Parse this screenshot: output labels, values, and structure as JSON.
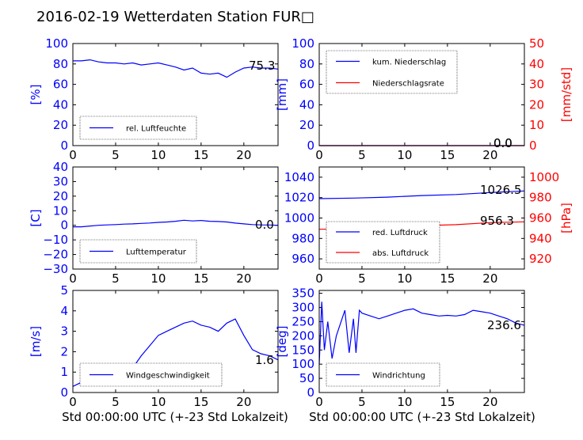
{
  "title": "2016-02-19 Wetterdaten Station FUR□",
  "xlabel": "Std 00:00:00 UTC (+-23 Std Lokalzeit)",
  "colors": {
    "primary": "#0000ff",
    "secondary": "#ff0000"
  },
  "chart_data": [
    {
      "id": "humidity",
      "type": "line",
      "ylabel": "[%]",
      "ylim": [
        0,
        100
      ],
      "yticks": [
        "0",
        "20",
        "40",
        "60",
        "80",
        "100"
      ],
      "xlim": [
        0,
        24
      ],
      "xticks": [
        "0",
        "5",
        "10",
        "15",
        "20"
      ],
      "legend": [
        "rel. Luftfeuchte"
      ],
      "legend_position": "lower-left",
      "last_values": [
        "75.3"
      ],
      "series": [
        {
          "name": "rel. Luftfeuchte",
          "color": "#0000ff",
          "x": [
            0,
            1,
            2,
            3,
            4,
            5,
            6,
            7,
            8,
            9,
            10,
            11,
            12,
            13,
            14,
            15,
            16,
            17,
            18,
            19,
            20,
            21,
            22,
            23,
            24
          ],
          "y": [
            83,
            83,
            84,
            82,
            81,
            81,
            80,
            81,
            79,
            80,
            81,
            79,
            77,
            74,
            76,
            71,
            70,
            71,
            67,
            72,
            76,
            77,
            76,
            76,
            75
          ]
        }
      ]
    },
    {
      "id": "precipitation",
      "type": "line",
      "ylabel": "[mm]",
      "ylabel_right": "[mm/std]",
      "ylim": [
        0,
        100
      ],
      "ylim_right": [
        0,
        50
      ],
      "yticks": [
        "0",
        "20",
        "40",
        "60",
        "80",
        "100"
      ],
      "yticks_right": [
        "0",
        "10",
        "20",
        "30",
        "40",
        "50"
      ],
      "xlim": [
        0,
        24
      ],
      "xticks": [
        "0",
        "5",
        "10",
        "15",
        "20"
      ],
      "legend": [
        "kum. Niederschlag",
        "Niederschlagsrate"
      ],
      "legend_position": "upper-left",
      "last_values": [
        "0.0",
        "0.0"
      ],
      "series": [
        {
          "name": "kum. Niederschlag",
          "color": "#0000ff",
          "x": [
            0,
            24
          ],
          "y": [
            0,
            0
          ]
        },
        {
          "name": "Niederschlagsrate",
          "color": "#ff0000",
          "x": [
            0,
            24
          ],
          "y": [
            0,
            0
          ]
        }
      ]
    },
    {
      "id": "temperature",
      "type": "line",
      "ylabel": "[C]",
      "ylim": [
        -30,
        40
      ],
      "yticks": [
        "−30",
        "−20",
        "−10",
        "0",
        "10",
        "20",
        "30",
        "40"
      ],
      "xlim": [
        0,
        24
      ],
      "xticks": [
        "0",
        "5",
        "10",
        "15",
        "20"
      ],
      "legend": [
        "Lufttemperatur"
      ],
      "legend_position": "lower-left",
      "last_values": [
        "0.0"
      ],
      "series": [
        {
          "name": "Lufttemperatur",
          "color": "#0000ff",
          "x": [
            0,
            1,
            2,
            3,
            4,
            5,
            6,
            7,
            8,
            9,
            10,
            11,
            12,
            13,
            14,
            15,
            16,
            17,
            18,
            19,
            20,
            21,
            22,
            23,
            24
          ],
          "y": [
            -1,
            -1,
            -0.5,
            0,
            0.3,
            0.5,
            0.8,
            1,
            1.3,
            1.6,
            2,
            2.3,
            2.8,
            3.5,
            3,
            3.3,
            2.8,
            2.6,
            2.3,
            1.5,
            1,
            0.5,
            0.3,
            0.2,
            0
          ]
        }
      ]
    },
    {
      "id": "pressure",
      "type": "line",
      "ylabel_right": "[hPa]",
      "ylim": [
        950,
        1050
      ],
      "ylim_right": [
        910,
        1010
      ],
      "yticks": [
        "960",
        "980",
        "1000",
        "1020",
        "1040"
      ],
      "yticks_right": [
        "920",
        "940",
        "960",
        "980",
        "1000"
      ],
      "xlim": [
        0,
        24
      ],
      "xticks": [
        "0",
        "5",
        "10",
        "15",
        "20"
      ],
      "legend": [
        "red. Luftdruck",
        "abs. Luftdruck"
      ],
      "legend_position": "lower-left",
      "last_values": [
        "1026.5",
        "956.3"
      ],
      "series": [
        {
          "name": "red. Luftdruck",
          "color": "#0000ff",
          "x": [
            0,
            4,
            8,
            12,
            16,
            20,
            24
          ],
          "y": [
            1019,
            1019.5,
            1020.5,
            1022,
            1023,
            1025,
            1026.5
          ]
        },
        {
          "name": "abs. Luftdruck",
          "color": "#ff0000",
          "x": [
            0,
            4,
            8,
            12,
            16,
            20,
            24
          ],
          "y": [
            949,
            949.5,
            950.5,
            952.5,
            953.5,
            955.5,
            956.3
          ]
        }
      ]
    },
    {
      "id": "windspeed",
      "type": "line",
      "ylabel": "[m/s]",
      "ylim": [
        0,
        5
      ],
      "yticks": [
        "0",
        "1",
        "2",
        "3",
        "4",
        "5"
      ],
      "xlim": [
        0,
        24
      ],
      "xticks": [
        "0",
        "5",
        "10",
        "15",
        "20"
      ],
      "legend": [
        "Windgeschwindigkeit"
      ],
      "legend_position": "lower-left",
      "last_values": [
        "1.6"
      ],
      "series": [
        {
          "name": "Windgeschwindigkeit",
          "color": "#0000ff",
          "x": [
            0,
            1,
            2,
            3,
            4,
            5,
            6,
            7,
            8,
            9,
            10,
            11,
            12,
            13,
            14,
            15,
            16,
            17,
            18,
            19,
            20,
            21,
            22,
            23,
            24
          ],
          "y": [
            0.3,
            0.5,
            0.8,
            0.6,
            0.9,
            0.5,
            0.8,
            1.2,
            1.8,
            2.3,
            2.8,
            3.0,
            3.2,
            3.4,
            3.5,
            3.3,
            3.2,
            3.0,
            3.4,
            3.6,
            2.8,
            2.1,
            1.9,
            1.8,
            1.6
          ]
        }
      ]
    },
    {
      "id": "winddirection",
      "type": "line",
      "ylabel": "[deg]",
      "ylim": [
        0,
        360
      ],
      "yticks": [
        "0",
        "50",
        "100",
        "150",
        "200",
        "250",
        "300",
        "350"
      ],
      "xlim": [
        0,
        24
      ],
      "xticks": [
        "0",
        "5",
        "10",
        "15",
        "20"
      ],
      "legend": [
        "Windrichtung"
      ],
      "legend_position": "lower-left",
      "last_values": [
        "236.6"
      ],
      "series": [
        {
          "name": "Windrichtung",
          "color": "#0000ff",
          "x": [
            0,
            0.3,
            0.6,
            1,
            1.5,
            2,
            3,
            3.5,
            4,
            4.3,
            4.7,
            5,
            6,
            7,
            8,
            9,
            10,
            11,
            12,
            13,
            14,
            15,
            16,
            17,
            18,
            19,
            20,
            21,
            22,
            23,
            24
          ],
          "y": [
            100,
            320,
            150,
            250,
            120,
            200,
            290,
            140,
            260,
            140,
            290,
            280,
            270,
            260,
            270,
            280,
            290,
            295,
            280,
            275,
            270,
            272,
            270,
            275,
            290,
            285,
            280,
            270,
            260,
            245,
            237
          ]
        }
      ]
    }
  ]
}
